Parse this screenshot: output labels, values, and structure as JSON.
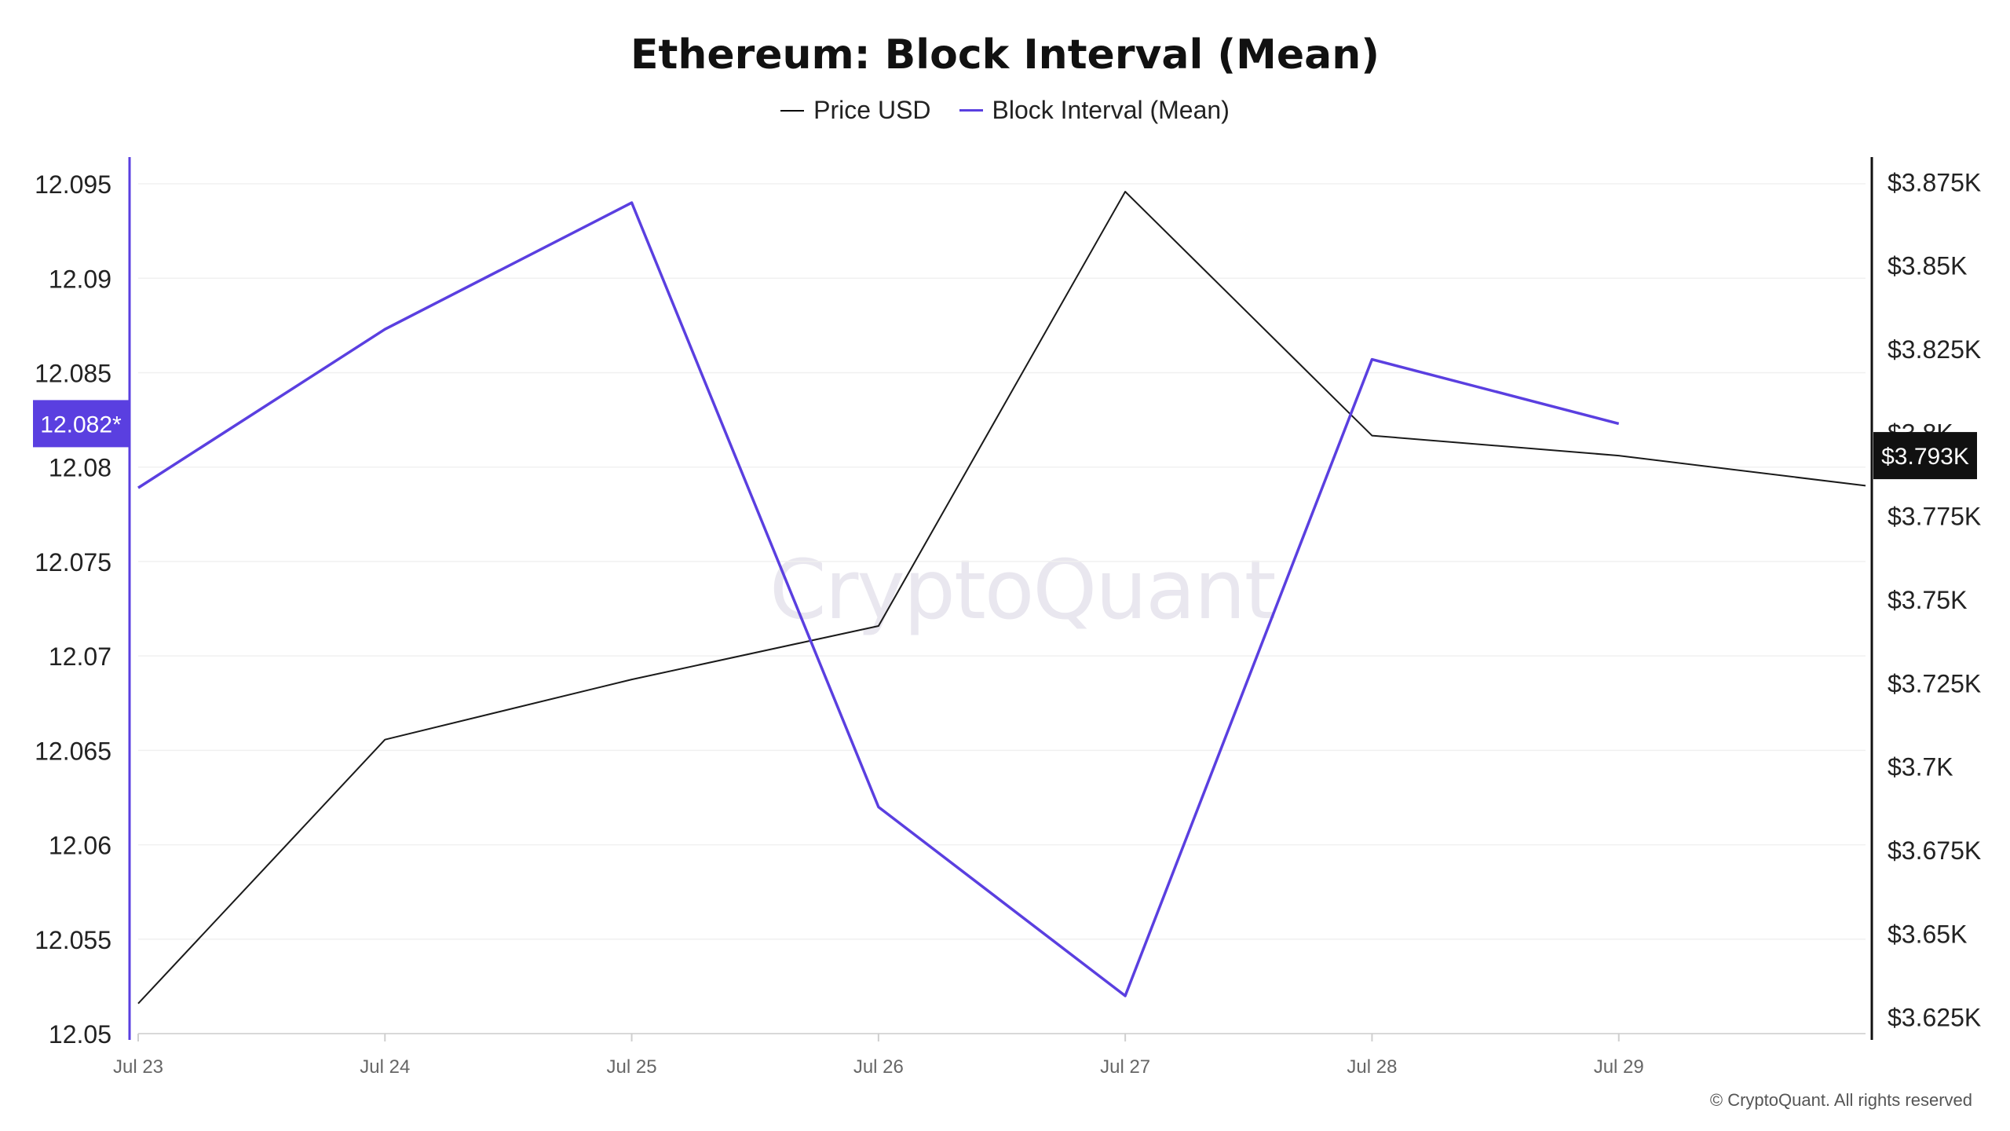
{
  "chart_data": {
    "type": "line",
    "title": "Ethereum: Block Interval (Mean)",
    "x": [
      "Jul 23",
      "Jul 24",
      "Jul 25",
      "Jul 26",
      "Jul 27",
      "Jul 28",
      "Jul 29",
      ""
    ],
    "x_tick_labels": [
      "Jul 23",
      "Jul 24",
      "Jul 25",
      "Jul 26",
      "Jul 27",
      "Jul 28",
      "Jul 29"
    ],
    "series": [
      {
        "name": "Price USD",
        "axis": "right",
        "color": "#1a1a1a",
        "values": [
          3629,
          3708,
          3726,
          3742,
          3872,
          3799,
          3793,
          3784
        ]
      },
      {
        "name": "Block Interval (Mean)",
        "axis": "left",
        "color": "#5a3fe0",
        "values": [
          12.0789,
          12.0873,
          12.094,
          12.062,
          12.052,
          12.0857,
          12.0823,
          null
        ]
      }
    ],
    "y_left": {
      "ticks": [
        12.05,
        12.055,
        12.06,
        12.065,
        12.07,
        12.075,
        12.08,
        12.085,
        12.09,
        12.095
      ],
      "tick_labels": [
        "12.05",
        "12.055",
        "12.06",
        "12.065",
        "12.07",
        "12.075",
        "12.08",
        "12.085",
        "12.09",
        "12.095"
      ],
      "ylim": [
        12.05,
        12.096
      ]
    },
    "y_right": {
      "ticks": [
        3625,
        3650,
        3675,
        3700,
        3725,
        3750,
        3775,
        3800,
        3825,
        3850,
        3875
      ],
      "tick_labels": [
        "$3.625K",
        "$3.65K",
        "$3.675K",
        "$3.7K",
        "$3.725K",
        "$3.75K",
        "$3.775K",
        "$3.8K",
        "$3.825K",
        "$3.85K",
        "$3.875K"
      ],
      "ylim": [
        3620,
        3880
      ]
    },
    "current_left_label": "12.082*",
    "current_left_value": 12.0823,
    "current_right_label": "$3.793K",
    "current_right_value": 3793,
    "legend_position": "top-center",
    "grid": true
  },
  "watermark": "CryptoQuant",
  "copyright": "© CryptoQuant. All rights reserved"
}
